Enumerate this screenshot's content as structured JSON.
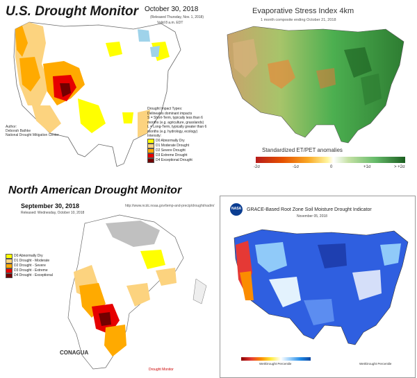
{
  "panel_usdm": {
    "title": "U.S. Drought Monitor",
    "date": "October 30, 2018",
    "released": "(Released Thursday, Nov. 1, 2018)",
    "valid": "Valid 8 a.m. EDT",
    "impact_title": "Drought Impact Types:",
    "impact_items": [
      "Delineates dominant impacts",
      "S = Short-Term, typically less than 6 months (e.g. agriculture, grasslands)",
      "L = Long-Term, typically greater than 6 months (e.g. hydrology, ecology)"
    ],
    "intensity_title": "Intensity:",
    "intensity": [
      {
        "label": "D0 Abnormally Dry",
        "color": "#ffff00"
      },
      {
        "label": "D1 Moderate Drought",
        "color": "#fcd37f"
      },
      {
        "label": "D2 Severe Drought",
        "color": "#ffaa00"
      },
      {
        "label": "D3 Extreme Drought",
        "color": "#e60000"
      },
      {
        "label": "D4 Exceptional Drought",
        "color": "#730000"
      }
    ],
    "author_label": "Author:",
    "author_name": "Deborah Bathke",
    "author_org": "National Drought Mitigation Center"
  },
  "panel_esi": {
    "title": "Evaporative Stress Index 4km",
    "subtitle": "1 month composite ending October 21, 2018",
    "scale_title": "Standardized ET/PET anomalies",
    "scale_labels": [
      "-2σ",
      "-1σ",
      "0",
      "+1σ",
      "> +2σ"
    ]
  },
  "panel_namm": {
    "title": "North American Drought Monitor",
    "date": "September 30, 2018",
    "released": "Released: Wednesday, October 10, 2018",
    "url": "http://www.ncdc.noaa.gov/temp-and-precip/drought/nadm/",
    "intensity": [
      {
        "label": "D0 Abnormally Dry",
        "color": "#ffff00"
      },
      {
        "label": "D1 Drought - Moderate",
        "color": "#fcd37f"
      },
      {
        "label": "D2 Drought - Severe",
        "color": "#ffaa00"
      },
      {
        "label": "D3 Drought - Extreme",
        "color": "#e60000"
      },
      {
        "label": "D4 Drought - Exceptional",
        "color": "#730000"
      }
    ],
    "conagua": "CONAGUA",
    "note": "Drought Monitor"
  },
  "panel_grace": {
    "title": "GRACE-Based Root Zone Soil Moisture Drought Indicator",
    "date": "November 05, 2018",
    "nasa": "NASA",
    "scale_left": "Wet/Drought Percentile",
    "scale_right": "Wet/Drought Percentile"
  }
}
